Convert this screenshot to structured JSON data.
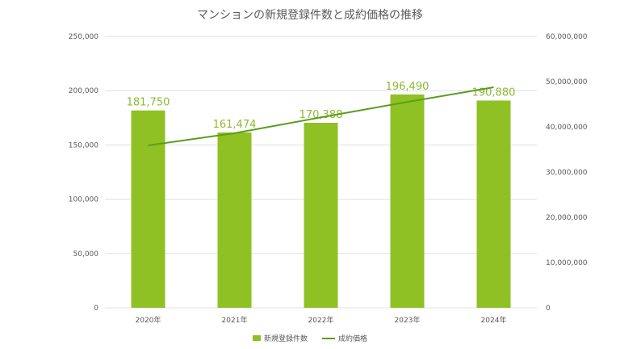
{
  "chart_data": {
    "type": "bar",
    "title": "マンションの新規登録件数と成約価格の推移",
    "categories": [
      "2020年",
      "2021年",
      "2022年",
      "2023年",
      "2024年"
    ],
    "series": [
      {
        "name": "新規登録件数",
        "type": "bar",
        "axis": "left",
        "values": [
          181750,
          161474,
          170388,
          196490,
          190880
        ],
        "color": "#8fc124",
        "labels": [
          "181,750",
          "161,474",
          "170,388",
          "196,490",
          "190,880"
        ]
      },
      {
        "name": "成約価格",
        "type": "line",
        "axis": "right",
        "values": [
          35900000,
          38600000,
          42100000,
          45500000,
          48750000
        ],
        "color": "#5a9e1c"
      }
    ],
    "ylim_left": [
      0,
      250000
    ],
    "yticks_left": [
      "0",
      "50,000",
      "100,000",
      "150,000",
      "200,000",
      "250,000"
    ],
    "ylim_right": [
      0,
      60000000
    ],
    "yticks_right": [
      "0",
      "10,000,000",
      "20,000,000",
      "30,000,000",
      "40,000,000",
      "50,000,000",
      "60,000,000"
    ],
    "grid": true,
    "legend": "bottom"
  }
}
